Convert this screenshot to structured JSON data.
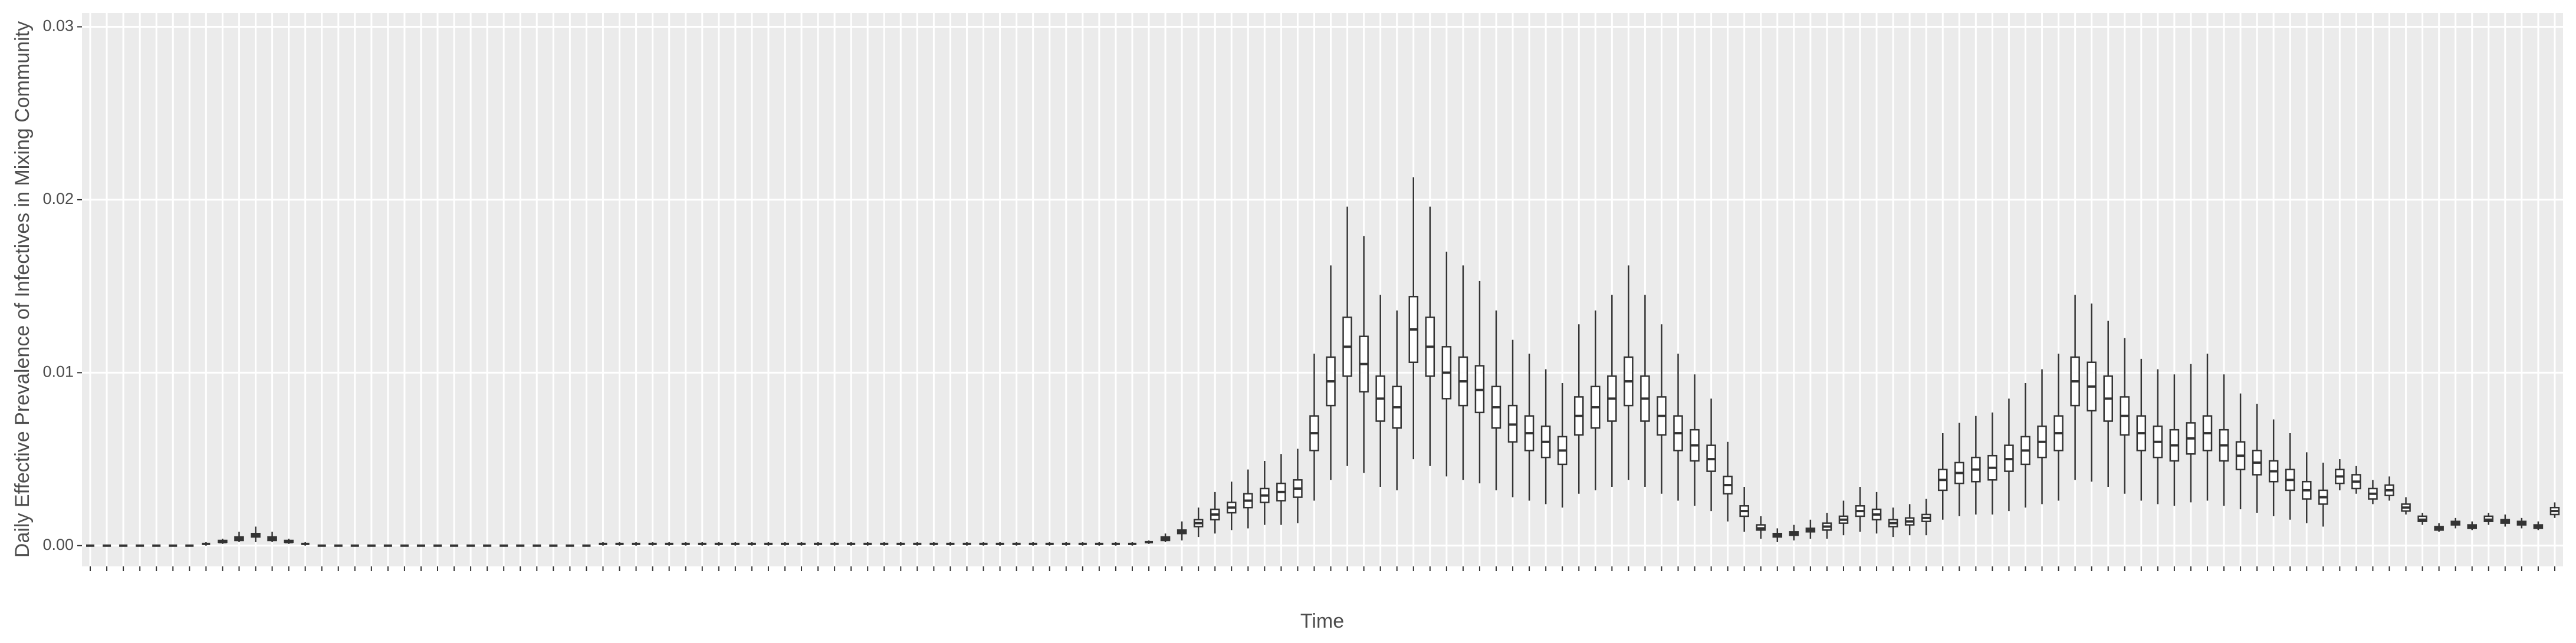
{
  "chart_data": {
    "type": "boxplot",
    "y_label": "Daily Effective Prevalence of Infectives in Mixing Community",
    "x_label": "Time",
    "ylim": [
      -0.0012,
      0.0308
    ],
    "yticks": [
      {
        "value": 0,
        "label": "0.00"
      },
      0.01,
      0.02,
      0.03
    ],
    "grid": true,
    "color": "#333333",
    "categories": [
      null,
      null,
      null,
      null,
      null,
      null,
      null,
      null,
      null,
      null,
      null,
      null,
      null,
      null,
      null,
      null,
      null,
      null,
      null,
      null,
      null,
      null,
      null,
      null,
      null,
      null,
      null,
      null,
      null,
      null,
      null,
      null,
      null,
      null,
      null,
      null,
      null,
      null,
      null,
      null,
      null,
      null,
      null,
      null,
      null,
      null,
      null,
      null,
      null,
      null,
      null,
      null,
      null,
      null,
      null,
      null,
      null,
      null,
      null,
      null,
      null,
      null,
      null,
      null,
      null,
      null,
      null,
      null,
      null,
      null,
      null,
      null,
      null,
      null,
      null,
      null,
      null,
      null,
      null,
      null,
      null,
      null,
      null,
      null,
      null,
      null,
      null,
      null,
      null,
      null,
      null,
      null,
      null,
      null,
      null,
      null,
      null,
      null,
      null,
      null,
      null,
      null,
      null,
      null,
      null,
      null,
      null,
      null,
      null,
      null,
      null,
      null,
      null,
      null,
      null,
      null,
      null,
      null,
      null,
      null,
      null,
      null,
      null,
      null,
      null,
      null,
      null,
      null,
      null,
      null,
      null,
      null,
      null,
      null,
      null,
      null,
      null,
      null,
      null,
      null,
      null,
      null,
      null,
      null,
      null,
      null,
      null,
      null,
      null,
      null
    ],
    "low": [
      0,
      0,
      0,
      0,
      0,
      0,
      0,
      0,
      0.0001,
      0.0002,
      0.0002,
      0.0002,
      0.0001,
      0,
      0,
      0,
      0,
      0,
      0,
      0,
      0,
      0,
      0,
      0,
      0,
      0,
      0,
      0,
      0,
      0,
      0,
      0,
      0,
      0,
      0,
      0,
      0,
      0,
      0,
      0,
      0,
      0,
      0,
      0,
      0,
      0,
      0,
      0,
      0,
      0,
      0,
      0,
      0,
      0,
      0,
      0,
      0,
      0,
      0,
      0,
      0,
      0,
      0,
      0,
      0.0001,
      0.0002,
      0.0003,
      0.0005,
      0.0007,
      0.0009,
      0.001,
      0.0012,
      0.0012,
      0.0013,
      0.0026,
      0.0038,
      0.0046,
      0.0042,
      0.0034,
      0.0032,
      0.005,
      0.0046,
      0.004,
      0.0038,
      0.0036,
      0.0032,
      0.0028,
      0.0026,
      0.0024,
      0.0022,
      0.003,
      0.0032,
      0.0034,
      0.0038,
      0.0034,
      0.003,
      0.0026,
      0.0023,
      0.002,
      0.0014,
      0.0008,
      0.0004,
      0.0002,
      0.0003,
      0.0004,
      0.0004,
      0.0006,
      0.0008,
      0.0007,
      0.0005,
      0.0006,
      0.0006,
      0.0015,
      0.0017,
      0.0018,
      0.0018,
      0.002,
      0.0022,
      0.0024,
      0.0026,
      0.0038,
      0.0037,
      0.0034,
      0.003,
      0.0026,
      0.0024,
      0.0023,
      0.0025,
      0.0026,
      0.0023,
      0.0021,
      0.0019,
      0.0017,
      0.0015,
      0.0013,
      0.0011,
      0.0032,
      0.003,
      0.0024,
      0.0026,
      0.0018,
      0.0012,
      0.0008,
      0.001,
      0.0009,
      0.0012,
      0.0011,
      0.001,
      0.0009,
      0.0016
    ],
    "q1": [
      0,
      0,
      0,
      0,
      0,
      0,
      0,
      0.0001,
      0.0002,
      0.0003,
      0.0005,
      0.0003,
      0.0002,
      0.0001,
      0,
      0,
      0,
      0,
      0,
      0,
      0,
      0,
      0,
      0,
      0,
      0,
      0,
      0,
      0,
      0,
      0,
      0.0001,
      0.0001,
      0.0001,
      0.0001,
      0.0001,
      0.0001,
      0.0001,
      0.0001,
      0.0001,
      0.0001,
      0.0001,
      0.0001,
      0.0001,
      0.0001,
      0.0001,
      0.0001,
      0.0001,
      0.0001,
      0.0001,
      0.0001,
      0.0001,
      0.0001,
      0.0001,
      0.0001,
      0.0001,
      0.0001,
      0.0001,
      0.0001,
      0.0001,
      0.0001,
      0.0001,
      0.0001,
      0.0001,
      0.0002,
      0.0003,
      0.0007,
      0.0011,
      0.0015,
      0.0019,
      0.0022,
      0.0025,
      0.0026,
      0.0028,
      0.0055,
      0.0081,
      0.0098,
      0.0089,
      0.0072,
      0.0068,
      0.0106,
      0.0098,
      0.0085,
      0.0081,
      0.0077,
      0.0068,
      0.006,
      0.0055,
      0.0051,
      0.0047,
      0.0064,
      0.0068,
      0.0072,
      0.0081,
      0.0072,
      0.0064,
      0.0055,
      0.0049,
      0.0043,
      0.003,
      0.0017,
      0.0009,
      0.0005,
      0.0006,
      0.0008,
      0.0009,
      0.0013,
      0.0017,
      0.0015,
      0.0011,
      0.0012,
      0.0014,
      0.0032,
      0.0036,
      0.0037,
      0.0038,
      0.0043,
      0.0047,
      0.0051,
      0.0055,
      0.0081,
      0.0078,
      0.0072,
      0.0064,
      0.0055,
      0.0051,
      0.0049,
      0.0053,
      0.0055,
      0.0049,
      0.0044,
      0.0041,
      0.0037,
      0.0032,
      0.0027,
      0.0024,
      0.0036,
      0.0033,
      0.0027,
      0.0029,
      0.002,
      0.0014,
      0.0009,
      0.0012,
      0.001,
      0.0014,
      0.0013,
      0.0012,
      0.001,
      0.0018
    ],
    "median": [
      0,
      0,
      0,
      0,
      0,
      0,
      0,
      0.0001,
      0.0002,
      0.0004,
      0.0006,
      0.0004,
      0.0002,
      0.0001,
      0,
      0,
      0,
      0,
      0,
      0,
      0,
      0,
      0,
      0,
      0,
      0,
      0,
      0,
      0,
      0,
      0,
      0.0001,
      0.0001,
      0.0001,
      0.0001,
      0.0001,
      0.0001,
      0.0001,
      0.0001,
      0.0001,
      0.0001,
      0.0001,
      0.0001,
      0.0001,
      0.0001,
      0.0001,
      0.0001,
      0.0001,
      0.0001,
      0.0001,
      0.0001,
      0.0001,
      0.0001,
      0.0001,
      0.0001,
      0.0001,
      0.0001,
      0.0001,
      0.0001,
      0.0001,
      0.0001,
      0.0001,
      0.0001,
      0.0001,
      0.0002,
      0.0004,
      0.0008,
      0.0013,
      0.0018,
      0.0022,
      0.0026,
      0.0029,
      0.0031,
      0.0033,
      0.0065,
      0.0095,
      0.0115,
      0.0105,
      0.0085,
      0.008,
      0.0125,
      0.0115,
      0.01,
      0.0095,
      0.009,
      0.008,
      0.007,
      0.0065,
      0.006,
      0.0055,
      0.0075,
      0.008,
      0.0085,
      0.0095,
      0.0085,
      0.0075,
      0.0065,
      0.0058,
      0.005,
      0.0035,
      0.002,
      0.001,
      0.0006,
      0.0007,
      0.0009,
      0.0011,
      0.0015,
      0.002,
      0.0018,
      0.0013,
      0.0014,
      0.0016,
      0.0038,
      0.0042,
      0.0044,
      0.0045,
      0.005,
      0.0055,
      0.006,
      0.0065,
      0.0095,
      0.0092,
      0.0085,
      0.0075,
      0.0065,
      0.006,
      0.0058,
      0.0062,
      0.0065,
      0.0058,
      0.0052,
      0.0048,
      0.0043,
      0.0038,
      0.0032,
      0.0028,
      0.004,
      0.0037,
      0.003,
      0.0032,
      0.0022,
      0.0015,
      0.001,
      0.0013,
      0.0011,
      0.0015,
      0.0014,
      0.0013,
      0.0011,
      0.002
    ],
    "q3": [
      0,
      0,
      0,
      0,
      0,
      0,
      0,
      0.0001,
      0.0003,
      0.0005,
      0.0007,
      0.0005,
      0.0003,
      0.0001,
      0,
      0,
      0,
      0,
      0,
      0,
      0,
      0,
      0,
      0,
      0,
      0,
      0,
      0,
      0,
      0,
      0,
      0.0001,
      0.0001,
      0.0001,
      0.0001,
      0.0001,
      0.0001,
      0.0001,
      0.0001,
      0.0001,
      0.0001,
      0.0001,
      0.0001,
      0.0001,
      0.0001,
      0.0001,
      0.0001,
      0.0001,
      0.0001,
      0.0001,
      0.0001,
      0.0001,
      0.0001,
      0.0001,
      0.0001,
      0.0001,
      0.0001,
      0.0001,
      0.0001,
      0.0001,
      0.0001,
      0.0001,
      0.0001,
      0.0001,
      0.0002,
      0.0005,
      0.0009,
      0.0015,
      0.0021,
      0.0025,
      0.003,
      0.0033,
      0.0036,
      0.0038,
      0.0075,
      0.0109,
      0.0132,
      0.0121,
      0.0098,
      0.0092,
      0.0144,
      0.0132,
      0.0115,
      0.0109,
      0.0104,
      0.0092,
      0.0081,
      0.0075,
      0.0069,
      0.0063,
      0.0086,
      0.0092,
      0.0098,
      0.0109,
      0.0098,
      0.0086,
      0.0075,
      0.0067,
      0.0058,
      0.004,
      0.0023,
      0.0012,
      0.0007,
      0.0008,
      0.001,
      0.0013,
      0.0017,
      0.0023,
      0.0021,
      0.0015,
      0.0016,
      0.0018,
      0.0044,
      0.0048,
      0.0051,
      0.0052,
      0.0058,
      0.0063,
      0.0069,
      0.0075,
      0.0109,
      0.0106,
      0.0098,
      0.0086,
      0.0075,
      0.0069,
      0.0067,
      0.0071,
      0.0075,
      0.0067,
      0.006,
      0.0055,
      0.0049,
      0.0044,
      0.0037,
      0.0032,
      0.0044,
      0.0041,
      0.0033,
      0.0035,
      0.0024,
      0.0017,
      0.0011,
      0.0014,
      0.0012,
      0.0017,
      0.0015,
      0.0014,
      0.0012,
      0.0022
    ],
    "high": [
      0,
      0,
      0,
      0,
      0,
      0,
      0,
      0.0002,
      0.0004,
      0.0008,
      0.0011,
      0.0008,
      0.0004,
      0.0002,
      0,
      0,
      0,
      0,
      0,
      0,
      0,
      0,
      0,
      0,
      0,
      0,
      0,
      0,
      0,
      0,
      0,
      0.0002,
      0.0002,
      0.0002,
      0.0002,
      0.0002,
      0.0002,
      0.0002,
      0.0002,
      0.0002,
      0.0002,
      0.0002,
      0.0002,
      0.0002,
      0.0002,
      0.0002,
      0.0002,
      0.0002,
      0.0002,
      0.0002,
      0.0002,
      0.0002,
      0.0002,
      0.0002,
      0.0002,
      0.0002,
      0.0002,
      0.0002,
      0.0002,
      0.0002,
      0.0002,
      0.0002,
      0.0002,
      0.0002,
      0.0003,
      0.0007,
      0.0014,
      0.0022,
      0.0031,
      0.0037,
      0.0044,
      0.0049,
      0.0053,
      0.0056,
      0.0111,
      0.0162,
      0.0196,
      0.0179,
      0.0145,
      0.0136,
      0.0213,
      0.0196,
      0.017,
      0.0162,
      0.0153,
      0.0136,
      0.0119,
      0.0111,
      0.0102,
      0.0094,
      0.0128,
      0.0136,
      0.0145,
      0.0162,
      0.0145,
      0.0128,
      0.0111,
      0.0099,
      0.0085,
      0.006,
      0.0034,
      0.0017,
      0.001,
      0.0012,
      0.0015,
      0.0019,
      0.0026,
      0.0034,
      0.0031,
      0.0022,
      0.0024,
      0.0027,
      0.0065,
      0.0071,
      0.0075,
      0.0077,
      0.0085,
      0.0094,
      0.0102,
      0.0111,
      0.0145,
      0.014,
      0.013,
      0.012,
      0.0108,
      0.0102,
      0.0099,
      0.0105,
      0.0111,
      0.0099,
      0.0088,
      0.0082,
      0.0073,
      0.0065,
      0.0054,
      0.0048,
      0.005,
      0.0046,
      0.0038,
      0.004,
      0.0028,
      0.0019,
      0.0013,
      0.0016,
      0.0014,
      0.0019,
      0.0018,
      0.0016,
      0.0014,
      0.0025
    ]
  }
}
